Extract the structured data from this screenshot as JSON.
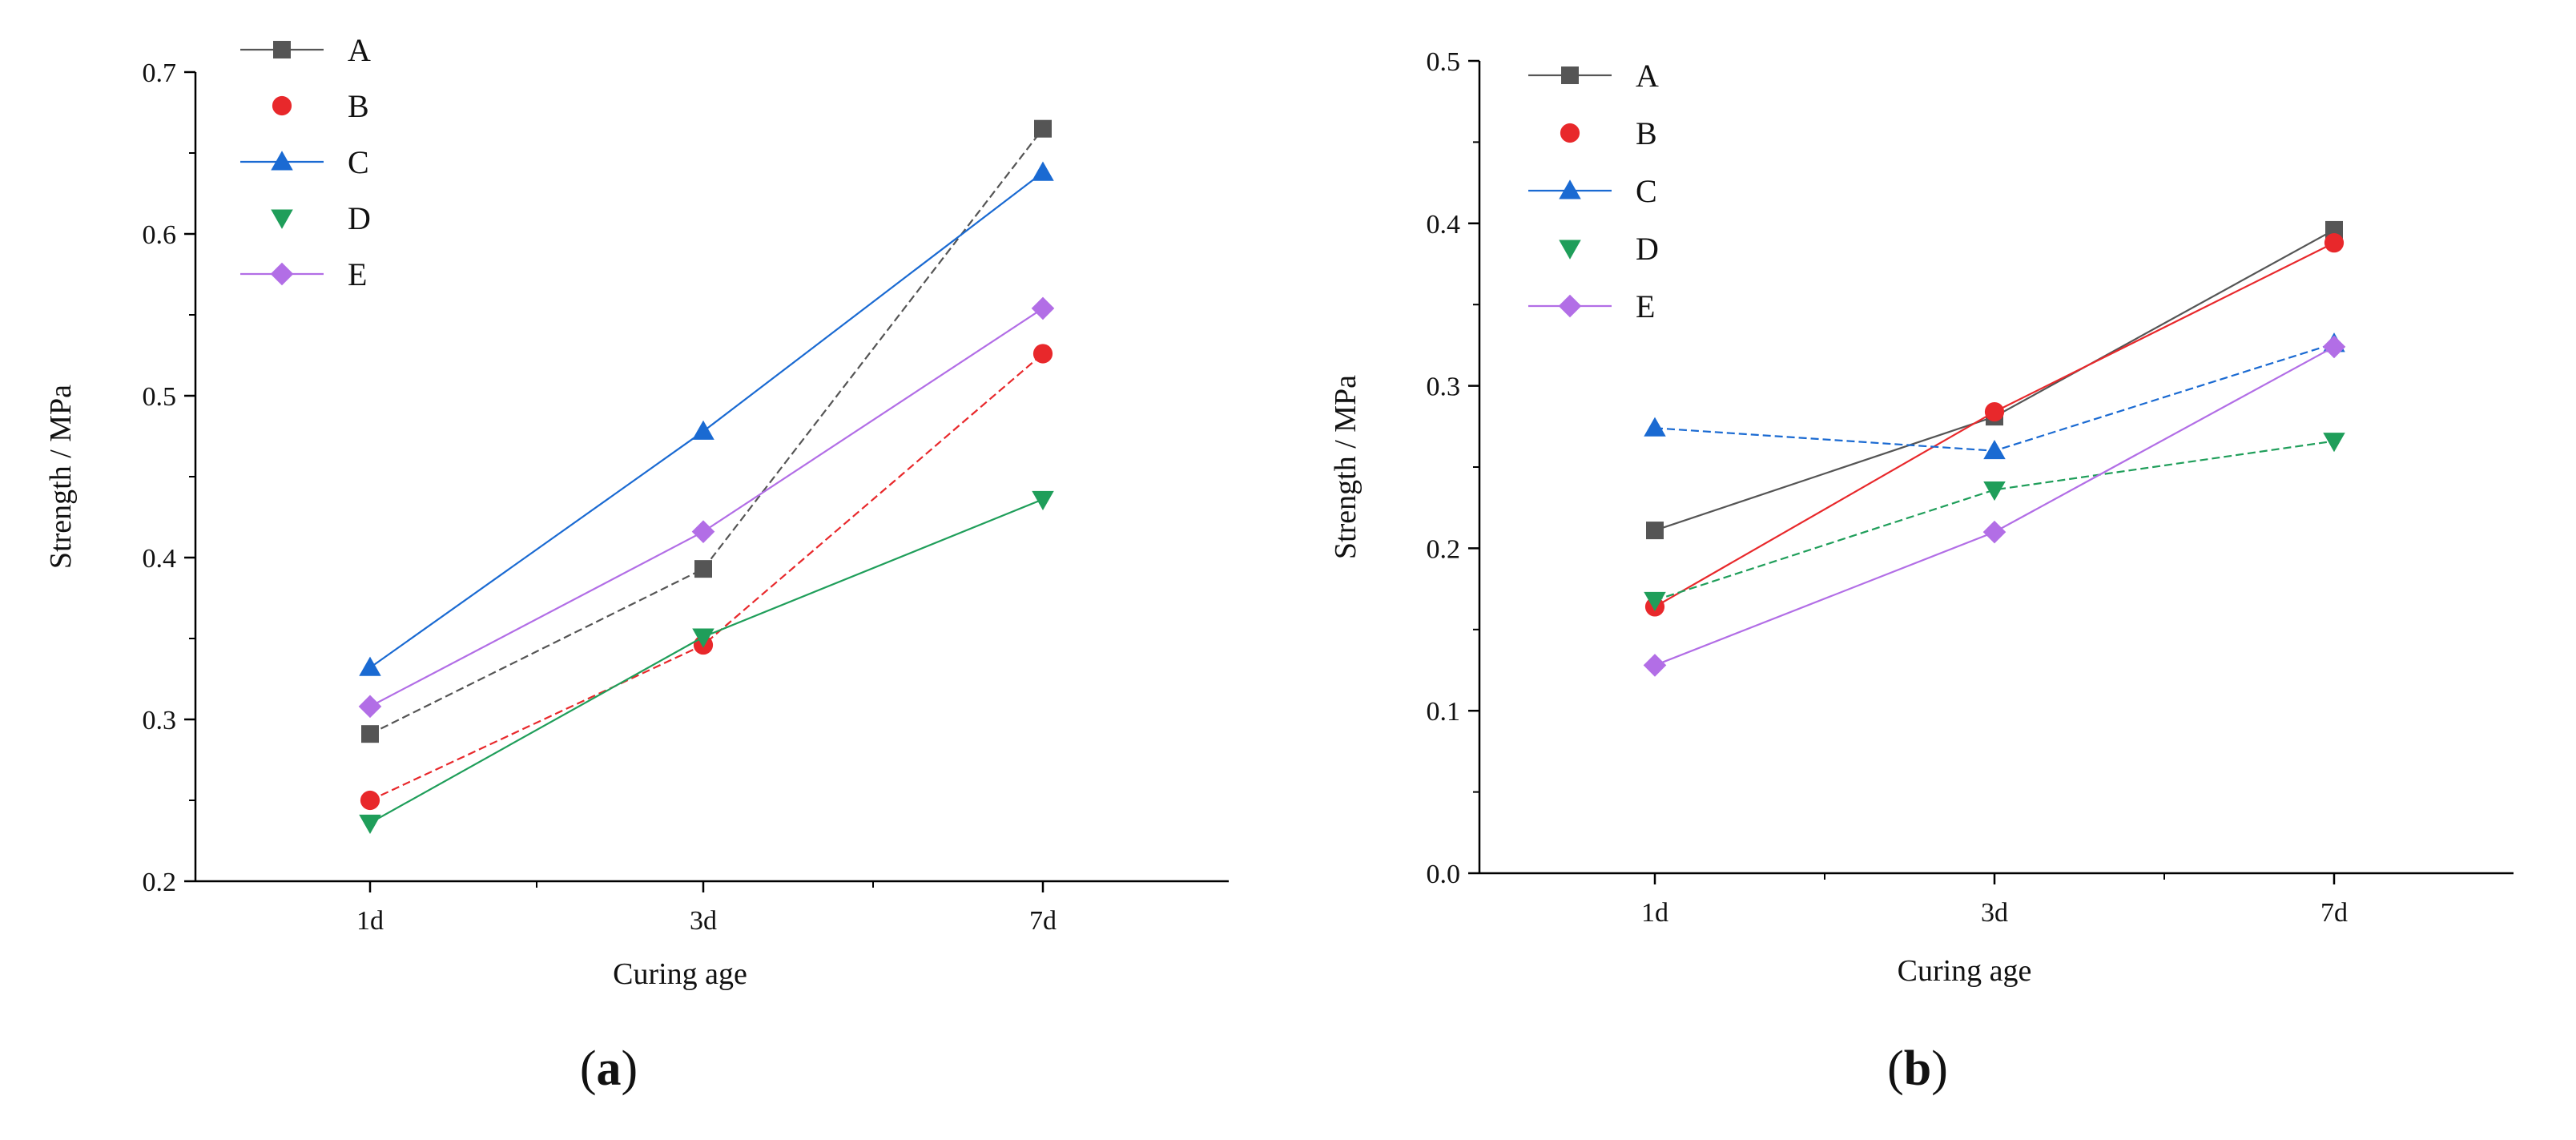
{
  "chart_data": [
    {
      "type": "line",
      "panel_label": "a",
      "xlabel": "Curing age",
      "ylabel": "Strength / MPa",
      "categories": [
        "1d",
        "3d",
        "7d"
      ],
      "ylim": [
        0.2,
        0.7
      ],
      "yticks": [
        "0.2",
        "0.3",
        "0.4",
        "0.5",
        "0.6",
        "0.7"
      ],
      "legend_position": "top-left",
      "series": [
        {
          "name": "A",
          "values": [
            0.291,
            0.393,
            0.665
          ],
          "color": "#555555",
          "marker": "square",
          "dash": "dashed"
        },
        {
          "name": "B",
          "values": [
            0.25,
            0.346,
            0.526
          ],
          "color": "#e8282b",
          "marker": "circle",
          "dash": "dashed"
        },
        {
          "name": "C",
          "values": [
            0.332,
            0.478,
            0.638
          ],
          "color": "#1a6ad2",
          "marker": "triangle-up",
          "dash": "solid"
        },
        {
          "name": "D",
          "values": [
            0.236,
            0.351,
            0.436
          ],
          "color": "#1f9e5a",
          "marker": "triangle-down",
          "dash": "solid"
        },
        {
          "name": "E",
          "values": [
            0.308,
            0.416,
            0.554
          ],
          "color": "#b26ee6",
          "marker": "diamond",
          "dash": "solid"
        }
      ]
    },
    {
      "type": "line",
      "panel_label": "b",
      "xlabel": "Curing age",
      "ylabel": "Strength / MPa",
      "categories": [
        "1d",
        "3d",
        "7d"
      ],
      "ylim": [
        0.0,
        0.5
      ],
      "yticks": [
        "0.0",
        "0.1",
        "0.2",
        "0.3",
        "0.4",
        "0.5"
      ],
      "legend_position": "top-left",
      "series": [
        {
          "name": "A",
          "values": [
            0.211,
            0.281,
            0.396
          ],
          "color": "#555555",
          "marker": "square",
          "dash": "solid"
        },
        {
          "name": "B",
          "values": [
            0.164,
            0.284,
            0.388
          ],
          "color": "#e8282b",
          "marker": "circle",
          "dash": "solid"
        },
        {
          "name": "C",
          "values": [
            0.274,
            0.26,
            0.326
          ],
          "color": "#1a6ad2",
          "marker": "triangle-up",
          "dash": "dashed"
        },
        {
          "name": "D",
          "values": [
            0.168,
            0.236,
            0.266
          ],
          "color": "#1f9e5a",
          "marker": "triangle-down",
          "dash": "dashed"
        },
        {
          "name": "E",
          "values": [
            0.128,
            0.21,
            0.324
          ],
          "color": "#b26ee6",
          "marker": "diamond",
          "dash": "solid"
        }
      ]
    }
  ]
}
